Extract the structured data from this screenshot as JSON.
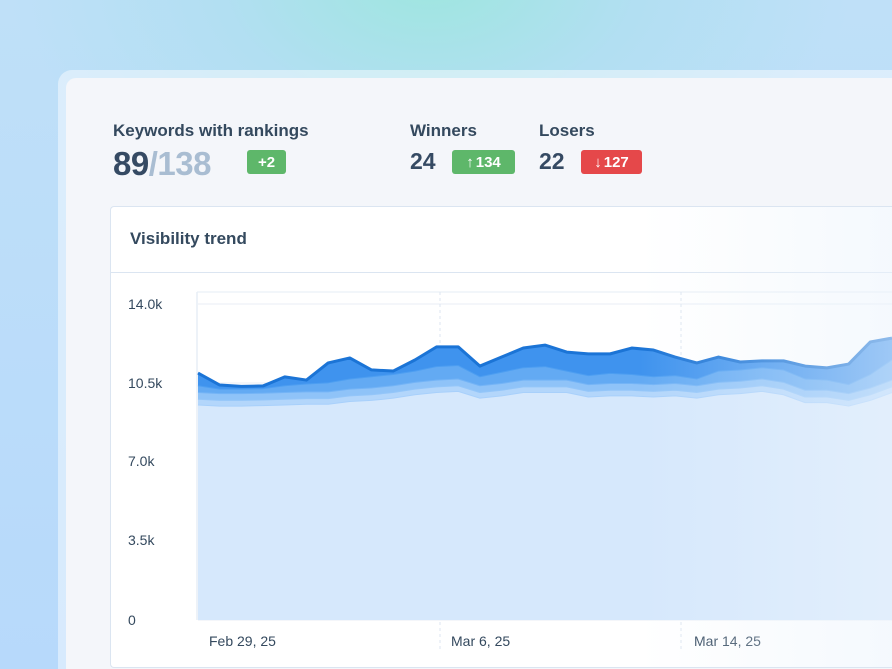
{
  "summary": {
    "keywords_label": "Keywords with rankings",
    "keywords_ranked": "89",
    "keywords_total": "/138",
    "keywords_change": "+2",
    "winners_label": "Winners",
    "winners_count": "24",
    "winners_change": "134",
    "losers_label": "Losers",
    "losers_count": "22",
    "losers_change": "127"
  },
  "colors": {
    "positive": "#5eb76a",
    "negative": "#e5484a",
    "accent": "#1b74d6"
  },
  "chart_data": {
    "type": "area",
    "stacked": true,
    "title": "Visibility trend",
    "ylim": [
      0,
      14000
    ],
    "y_ticks": [
      "0",
      "3.5k",
      "7.0k",
      "10.5k",
      "14.0k"
    ],
    "x_ticks": [
      "Feb 29, 25",
      "Mar 6, 25",
      "Mar 14, 25"
    ],
    "grid": true,
    "series": [
      {
        "values": [
          9550,
          9500,
          9500,
          9520,
          9550,
          9580,
          9580,
          9700,
          9750,
          9850,
          10000,
          10100,
          10150,
          9850,
          9950,
          10100,
          10100,
          10100,
          9900,
          9950,
          9950,
          9900,
          9950,
          9850,
          10000,
          10050,
          10150,
          10000,
          9650,
          9650,
          9500,
          9750,
          10100
        ]
      },
      {
        "values": [
          250,
          250,
          250,
          250,
          250,
          250,
          250,
          250,
          250,
          250,
          250,
          250,
          250,
          250,
          250,
          250,
          250,
          250,
          250,
          250,
          250,
          250,
          250,
          250,
          250,
          250,
          250,
          250,
          250,
          250,
          250,
          250,
          250
        ]
      },
      {
        "values": [
          300,
          300,
          300,
          300,
          300,
          300,
          300,
          300,
          300,
          300,
          300,
          300,
          300,
          300,
          300,
          300,
          300,
          300,
          300,
          300,
          300,
          300,
          300,
          300,
          300,
          300,
          300,
          300,
          300,
          300,
          300,
          300,
          300
        ]
      },
      {
        "values": [
          300,
          200,
          200,
          200,
          300,
          350,
          400,
          450,
          500,
          500,
          500,
          600,
          600,
          400,
          500,
          550,
          600,
          400,
          400,
          450,
          400,
          350,
          350,
          300,
          500,
          500,
          500,
          550,
          500,
          450,
          400,
          600,
          900
        ]
      },
      {
        "values": [
          540,
          160,
          100,
          100,
          370,
          150,
          860,
          910,
          280,
          130,
          470,
          850,
          800,
          450,
          650,
          850,
          930,
          820,
          940,
          840,
          1150,
          1160,
          800,
          690,
          600,
          330,
          280,
          380,
          550,
          520,
          890,
          1420,
          940
        ]
      }
    ]
  }
}
